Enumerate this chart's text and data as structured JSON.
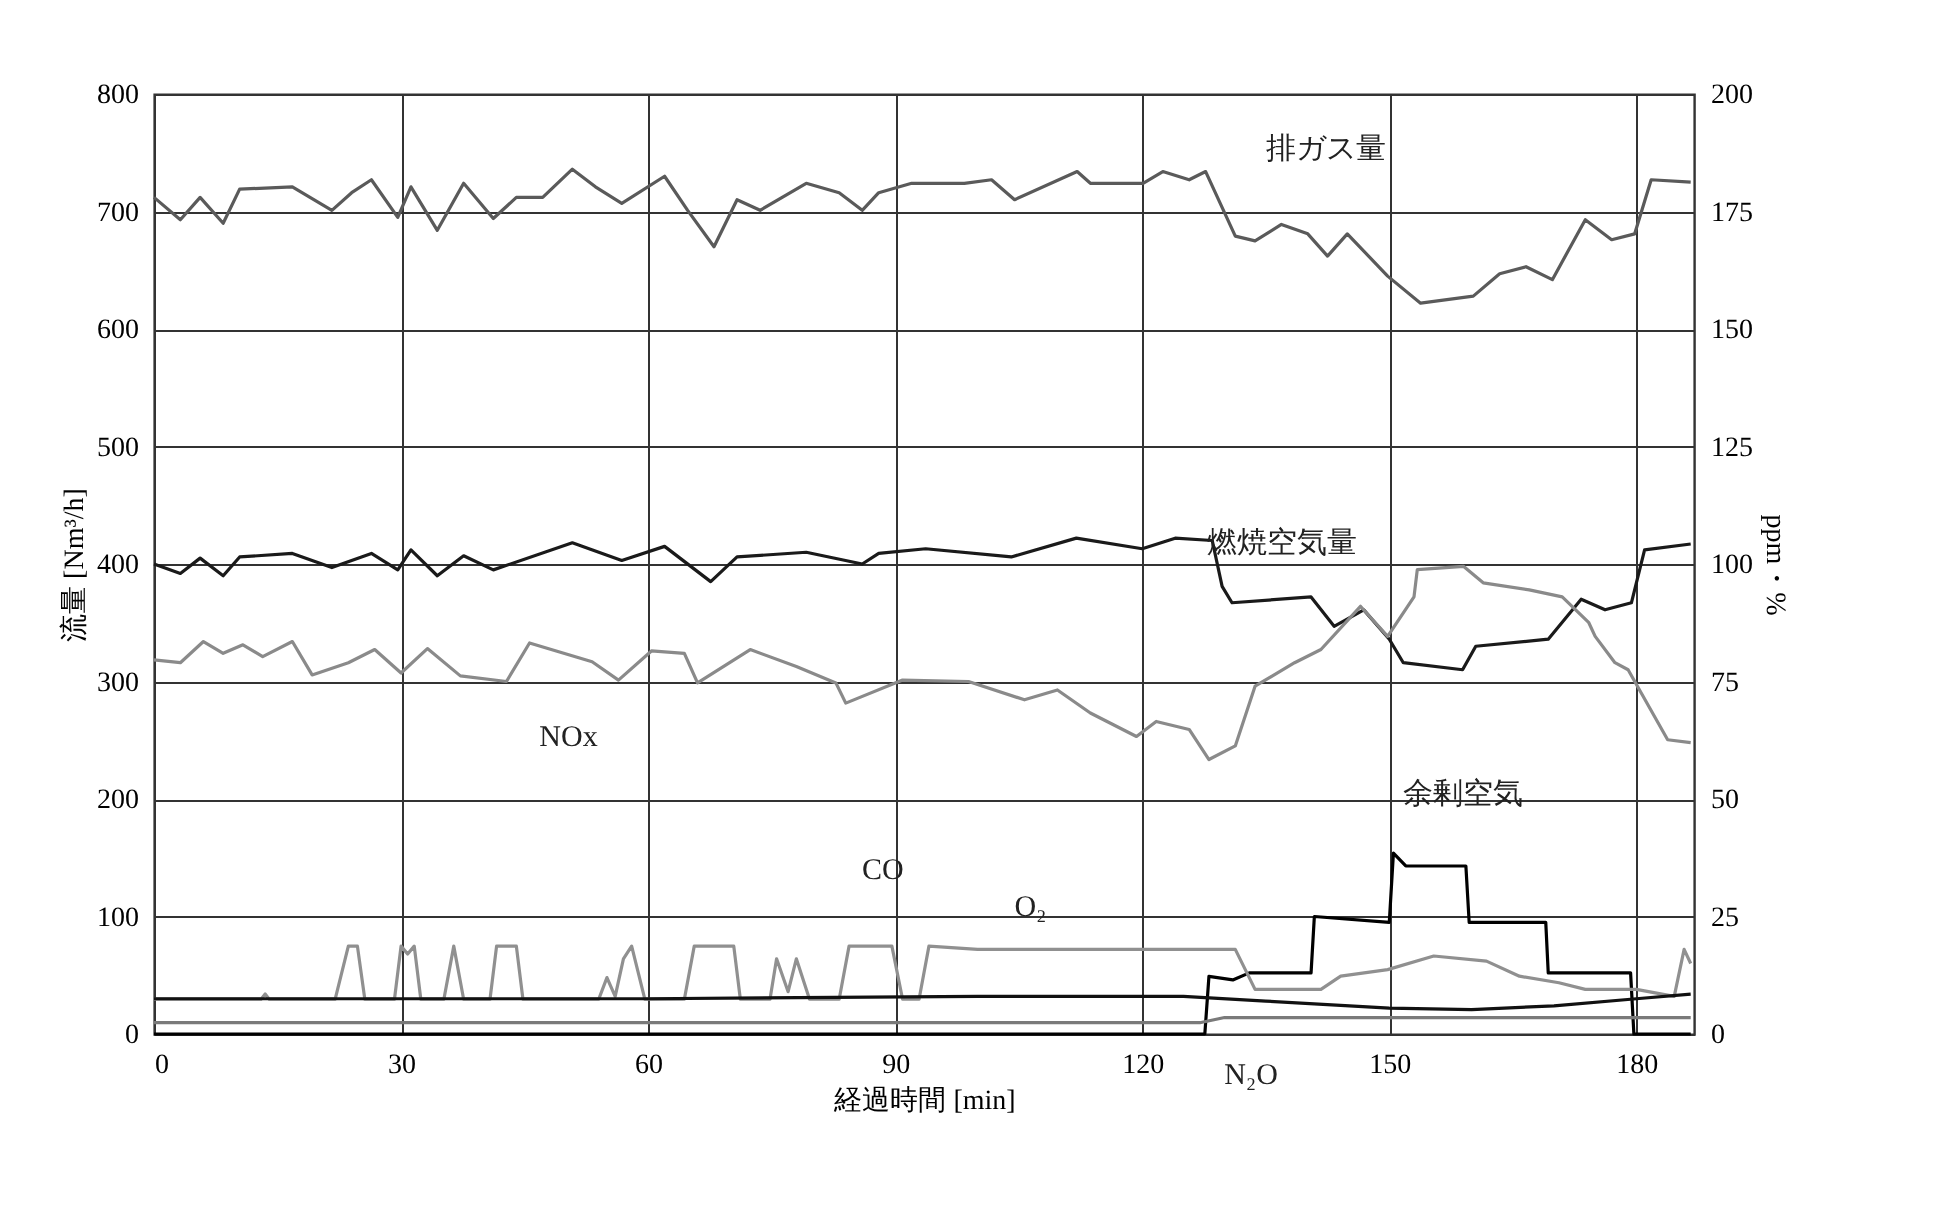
{
  "chart_data": {
    "type": "line",
    "xlabel": "経過時間 [min]",
    "ylabel": "流量 [Nm³/h]",
    "y2label": "ppm・%",
    "xlim": [
      0,
      187
    ],
    "xticks": [
      0,
      30,
      60,
      90,
      120,
      150,
      180
    ],
    "ylim": [
      0,
      800
    ],
    "yticks": [
      0,
      100,
      200,
      300,
      400,
      500,
      600,
      700,
      800
    ],
    "y2lim": [
      0,
      200
    ],
    "y2ticks": [
      0,
      25,
      50,
      75,
      100,
      125,
      150,
      175,
      200
    ],
    "grid": true,
    "legend": false,
    "series": [
      {
        "color": "#5a5a5a",
        "x": [
          0,
          3.2,
          5.6,
          8.4,
          10.4,
          16.8,
          21.6,
          24,
          26.4,
          29.6,
          31.2,
          34.4,
          37.6,
          41.2,
          44,
          47.2,
          50.8,
          53.6,
          56.8,
          62,
          64.8,
          68,
          70.8,
          73.6,
          79.2,
          83.2,
          86,
          88,
          92,
          98.4,
          101.7,
          104.5,
          112.1,
          113.7,
          120.1,
          122.5,
          125.7,
          127.7,
          131.3,
          133.7,
          136.9,
          140.1,
          142.5,
          144.9,
          149.8,
          153.8,
          160.2,
          163.4,
          166.6,
          169.8,
          173.8,
          177,
          179.8,
          181.8,
          186.6
        ],
        "values": [
          712,
          693,
          712,
          690,
          719,
          721,
          701,
          716,
          727,
          695,
          721,
          684,
          724,
          694,
          712,
          712,
          736,
          721,
          707,
          730,
          701,
          670,
          710,
          701,
          724,
          716,
          701,
          716,
          724,
          724,
          727,
          710,
          734,
          724,
          724,
          734,
          727,
          734,
          679,
          675,
          689,
          681,
          662,
          681,
          645,
          622,
          628,
          647,
          653,
          642,
          693,
          676,
          681,
          727,
          725
        ]
      },
      {
        "color": "#1a1a1a",
        "x": [
          0,
          3.2,
          5.6,
          8.4,
          10.4,
          16.8,
          21.6,
          26.4,
          29.6,
          31.2,
          34.4,
          37.6,
          41.2,
          50.8,
          56.8,
          62,
          67.6,
          70.8,
          79.2,
          86,
          88,
          93.7,
          104.1,
          112,
          120,
          124,
          128.5,
          129.7,
          130.9,
          140.5,
          143.3,
          146.9,
          150,
          151.7,
          158.9,
          160.5,
          169.3,
          173.3,
          176.2,
          179.4,
          181,
          186.6
        ],
        "values": [
          400,
          392,
          405,
          390,
          406,
          409,
          397,
          409,
          395,
          412,
          390,
          407,
          395,
          418,
          403,
          415,
          385,
          406,
          410,
          400,
          409,
          413,
          406,
          422,
          413,
          422,
          420,
          381,
          367,
          372,
          347,
          361,
          336,
          316,
          310,
          330,
          336,
          370,
          361,
          367,
          412,
          417
        ]
      },
      {
        "color": "#8a8a8a",
        "axis": "y2",
        "x": [
          0,
          3.2,
          6,
          8.4,
          10.8,
          13.2,
          16.8,
          19.2,
          23.6,
          26.8,
          30,
          33.2,
          37.2,
          42.8,
          45.6,
          53.2,
          56.4,
          60.4,
          64.4,
          66,
          72.4,
          78,
          82.8,
          84,
          90.9,
          98.9,
          105.7,
          109.7,
          113.7,
          119.3,
          121.7,
          125.7,
          128.1,
          131.3,
          133.7,
          138.5,
          141.7,
          146.5,
          149.8,
          153,
          153.4,
          159,
          161.4,
          167,
          171,
          174.2,
          175,
          177.4,
          179,
          183.8,
          186.6
        ],
        "values": [
          79.6,
          79,
          83.5,
          81,
          82.8,
          80.3,
          83.5,
          76.4,
          79,
          81.8,
          76.8,
          82,
          76.2,
          75,
          83.2,
          79.2,
          75.3,
          81.5,
          81,
          74.7,
          81.8,
          78.2,
          74.7,
          70.4,
          75.3,
          75,
          71.1,
          73.2,
          68.3,
          63.3,
          66.5,
          64.8,
          58.4,
          61.3,
          74,
          79,
          81.8,
          91,
          84.6,
          93,
          98.8,
          99.5,
          96,
          94.5,
          93,
          87.6,
          84.6,
          79,
          77.5,
          62.6,
          62
        ]
      },
      {
        "color": "#909090",
        "axis": "y2",
        "x": [
          0,
          13,
          13.5,
          14,
          22,
          23.6,
          24.7,
          25.6,
          29.2,
          30,
          30.8,
          31.6,
          32.4,
          35.2,
          36.4,
          37.6,
          40.8,
          41.6,
          44,
          44.8,
          54,
          55,
          56,
          57,
          58,
          59.6,
          64.4,
          65.6,
          70.4,
          71.2,
          74.8,
          75.6,
          77,
          78,
          79.6,
          83.2,
          84.4,
          89.6,
          90.9,
          92.9,
          94.1,
          100,
          110,
          120,
          131.3,
          133.7,
          141.7,
          144.1,
          149.8,
          155.4,
          161.8,
          165.8,
          170.6,
          173.8,
          180,
          184.6,
          185.8,
          186.6
        ],
        "values": [
          7.4,
          7.4,
          8.5,
          7.4,
          7.4,
          18.7,
          18.7,
          7.4,
          7.4,
          18.7,
          17,
          18.7,
          7.4,
          7.4,
          18.7,
          7.4,
          7.4,
          18.7,
          18.7,
          7.4,
          7.4,
          12,
          8,
          16,
          18.7,
          7.4,
          7.4,
          18.7,
          18.7,
          7.4,
          7.4,
          16,
          9,
          16,
          7.4,
          7.4,
          18.7,
          18.7,
          7.4,
          7.4,
          18.7,
          18,
          18,
          18,
          18,
          9.5,
          9.5,
          12.3,
          13.7,
          16.6,
          15.5,
          12.3,
          10.9,
          9.5,
          9.5,
          8,
          18,
          15
        ]
      },
      {
        "color": "#111111",
        "axis": "y2",
        "x": [
          0,
          60,
          100,
          125,
          135,
          150,
          160,
          170,
          180,
          186.6
        ],
        "values": [
          7.5,
          7.5,
          8,
          8,
          7,
          5.5,
          5.2,
          6,
          7.5,
          8.5
        ]
      },
      {
        "color": "#7a7a7a",
        "axis": "y2",
        "x": [
          0,
          60,
          127,
          130,
          160,
          186.6
        ],
        "values": [
          2.4,
          2.4,
          2.4,
          3.5,
          3.5,
          3.5
        ]
      },
      {
        "color": "#000000",
        "x": [
          0,
          127.6,
          128.1,
          131,
          133,
          140.5,
          140.9,
          150,
          150.5,
          152,
          159.3,
          159.7,
          169,
          169.3,
          179.3,
          179.7,
          186.6
        ],
        "values": [
          0,
          0,
          49,
          46,
          52,
          52,
          100,
          95,
          154,
          143,
          143,
          95,
          95,
          52,
          52,
          0,
          0
        ]
      }
    ],
    "annotations": [
      {
        "text": "排ガス量",
        "x": 127.7,
        "y": 734
      },
      {
        "text": "燃焼空気量",
        "x": 129.7,
        "y": 381
      },
      {
        "text": "NOx",
        "x": 56.4,
        "y": 301
      },
      {
        "text": "CO",
        "x": 97,
        "y": 72
      },
      {
        "text": "O₂",
        "x": 104,
        "y": 32
      },
      {
        "text": "N₂O",
        "x": 132,
        "y": 14
      },
      {
        "text": "余剰空気",
        "x": 150.5,
        "y": 154
      }
    ]
  }
}
